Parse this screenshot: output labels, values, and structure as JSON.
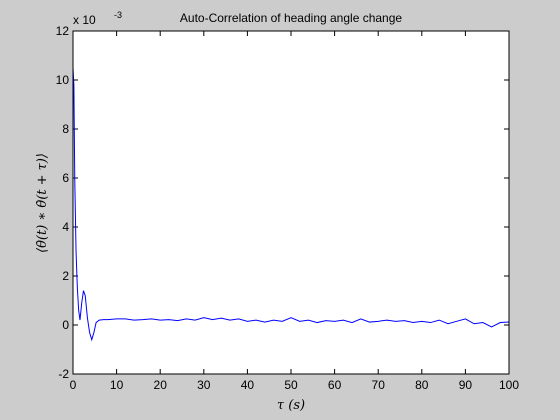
{
  "colors": {
    "figure_bg": "#cccccc",
    "axes_bg": "#ffffff",
    "series": "#0000ff"
  },
  "chart_data": {
    "type": "line",
    "title": "Auto-Correlation of heading angle change",
    "xlabel": "τ (s)",
    "ylabel": "⟨θ̇(t) ∗ θ̇(t + τ)⟩",
    "y_exponent_label": "x 10",
    "y_exponent_power": "-3",
    "xlim": [
      0,
      100
    ],
    "ylim": [
      -2,
      12
    ],
    "y_scale_factor": 0.001,
    "grid": false,
    "legend": "none",
    "x_ticks": [
      "0",
      "10",
      "20",
      "30",
      "40",
      "50",
      "60",
      "70",
      "80",
      "90",
      "100"
    ],
    "y_ticks": [
      "-2",
      "0",
      "2",
      "4",
      "6",
      "8",
      "10",
      "12"
    ],
    "series": [
      {
        "x": [
          0,
          0.2,
          0.4,
          0.7,
          1.0,
          1.3,
          1.6,
          2.0,
          2.4,
          2.8,
          3.3,
          3.8,
          4.3,
          4.8,
          5.3,
          6.0,
          7.0,
          8,
          10,
          12,
          14,
          16,
          18,
          20,
          22,
          24,
          26,
          28,
          30,
          32,
          34,
          36,
          38,
          40,
          42,
          44,
          46,
          48,
          50,
          52,
          54,
          56,
          58,
          60,
          62,
          64,
          66,
          68,
          70,
          72,
          74,
          76,
          78,
          80,
          82,
          84,
          86,
          88,
          90,
          92,
          94,
          96,
          98,
          100
        ],
        "values": [
          10.5,
          9.8,
          6.0,
          3.0,
          1.5,
          0.6,
          0.2,
          0.9,
          1.4,
          1.2,
          0.3,
          -0.3,
          -0.6,
          -0.3,
          0.1,
          0.2,
          0.22,
          0.22,
          0.25,
          0.25,
          0.2,
          0.22,
          0.25,
          0.2,
          0.22,
          0.18,
          0.25,
          0.2,
          0.3,
          0.22,
          0.28,
          0.2,
          0.25,
          0.15,
          0.2,
          0.12,
          0.2,
          0.15,
          0.3,
          0.15,
          0.2,
          0.1,
          0.18,
          0.15,
          0.2,
          0.1,
          0.25,
          0.12,
          0.15,
          0.2,
          0.15,
          0.18,
          0.1,
          0.15,
          0.1,
          0.2,
          0.05,
          0.15,
          0.25,
          0.05,
          0.1,
          -0.08,
          0.1,
          0.12
        ]
      }
    ]
  }
}
